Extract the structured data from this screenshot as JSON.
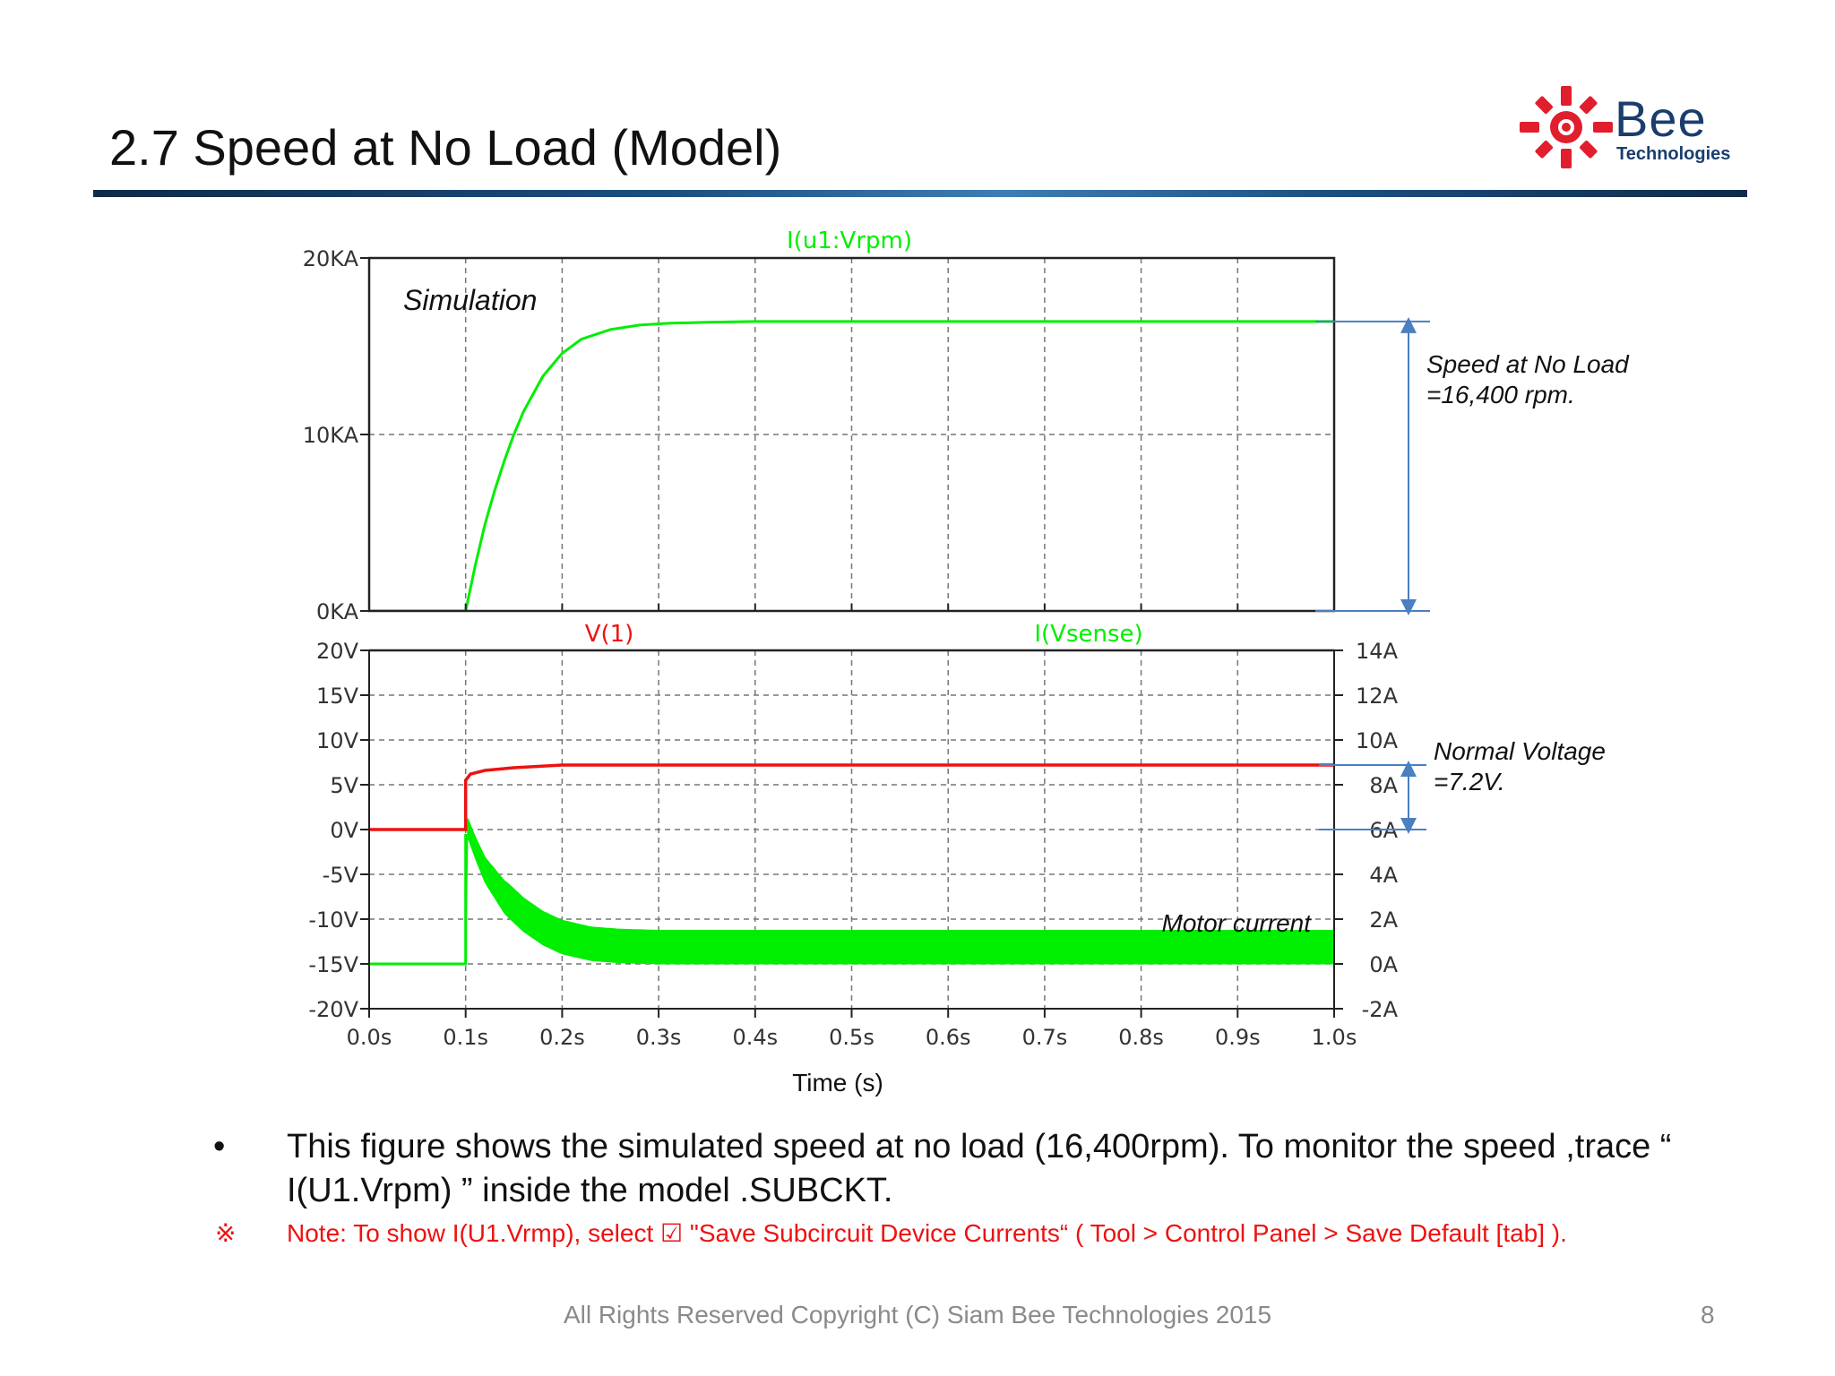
{
  "slide": {
    "title": "2.7 Speed at No Load (Model)",
    "logo": {
      "name": "Bee",
      "sub": "Technologies",
      "mark_color": "#e01e2d",
      "text_color": "#1a3d6e"
    },
    "bullet": {
      "marker": "•",
      "text": "This figure shows the simulated speed at no load (16,400rpm). To monitor the speed ,trace “ I(U1.Vrpm) ” inside the model .SUBCKT."
    },
    "note": {
      "marker": "※",
      "text": "Note: To show I(U1.Vrmp), select ☑ \"Save Subcircuit Device Currents“ ( Tool > Control Panel > Save Default [tab] )."
    },
    "footer": "All Rights Reserved Copyright (C) Siam Bee Technologies 2015",
    "page_number": "8"
  },
  "colors": {
    "green": "#00ee00",
    "red": "#ee1111",
    "annotation": "#4a7fc1",
    "grid": "#777777"
  },
  "chart_data": [
    {
      "type": "line",
      "series": [
        {
          "name": "I(u1:Vrpm)",
          "color": "#00ee00",
          "x": [
            0,
            0.1,
            0.11,
            0.12,
            0.13,
            0.14,
            0.15,
            0.16,
            0.18,
            0.2,
            0.22,
            0.25,
            0.28,
            0.31,
            0.35,
            0.4,
            0.5,
            1.0
          ],
          "y": [
            0,
            0,
            2600,
            4900,
            6800,
            8500,
            10000,
            11300,
            13300,
            14600,
            15400,
            15950,
            16200,
            16300,
            16360,
            16400,
            16400,
            16400
          ]
        }
      ],
      "x_ticks": [
        "0.0s",
        "0.1s",
        "0.2s",
        "0.3s",
        "0.4s",
        "0.5s",
        "0.6s",
        "0.7s",
        "0.8s",
        "0.9s",
        "1.0s"
      ],
      "y_ticks": [
        "20KA",
        "10KA",
        "0KA"
      ],
      "xlim": [
        0,
        1.0
      ],
      "ylim": [
        0,
        20000
      ],
      "grid": true,
      "annotations": [
        "Simulation",
        "Speed at No Load",
        "=16,400 rpm."
      ],
      "annotation_value": 16400
    },
    {
      "type": "line",
      "xlabel": "Time (s)",
      "series": [
        {
          "name": "V(1)",
          "axis": "left",
          "color": "#ee1111",
          "x": [
            0,
            0.1,
            0.1,
            0.105,
            0.12,
            0.15,
            0.2,
            0.3,
            0.5,
            1.0
          ],
          "y": [
            0,
            0,
            5.5,
            6.2,
            6.6,
            6.9,
            7.2,
            7.2,
            7.2,
            7.2
          ]
        },
        {
          "name": "I(Vsense)",
          "axis": "right",
          "color": "#00ee00",
          "x": [
            0,
            0.1,
            0.1,
            0.102,
            0.11,
            0.12,
            0.14,
            0.16,
            0.18,
            0.2,
            0.23,
            0.26,
            0.3,
            0.4,
            1.0
          ],
          "y": [
            0,
            0,
            5.8,
            6.1,
            5.2,
            4.2,
            3.0,
            2.2,
            1.6,
            1.2,
            0.9,
            0.8,
            0.75,
            0.75,
            0.75
          ],
          "ripple_amplitude": 0.75
        }
      ],
      "x_ticks": [
        "0.0s",
        "0.1s",
        "0.2s",
        "0.3s",
        "0.4s",
        "0.5s",
        "0.6s",
        "0.7s",
        "0.8s",
        "0.9s",
        "1.0s"
      ],
      "y_ticks_left": [
        "20V",
        "15V",
        "10V",
        "5V",
        "0V",
        "-5V",
        "-10V",
        "-15V",
        "-20V"
      ],
      "y_ticks_right": [
        "14A",
        "12A",
        "10A",
        "8A",
        "6A",
        "4A",
        "2A",
        "0A",
        "-2A"
      ],
      "xlim": [
        0,
        1.0
      ],
      "ylim_left": [
        -20,
        20
      ],
      "ylim_right": [
        -2,
        14
      ],
      "grid": true,
      "annotations": [
        "Normal Voltage",
        "=7.2V.",
        "Motor current"
      ],
      "annotation_value": 7.2
    }
  ]
}
